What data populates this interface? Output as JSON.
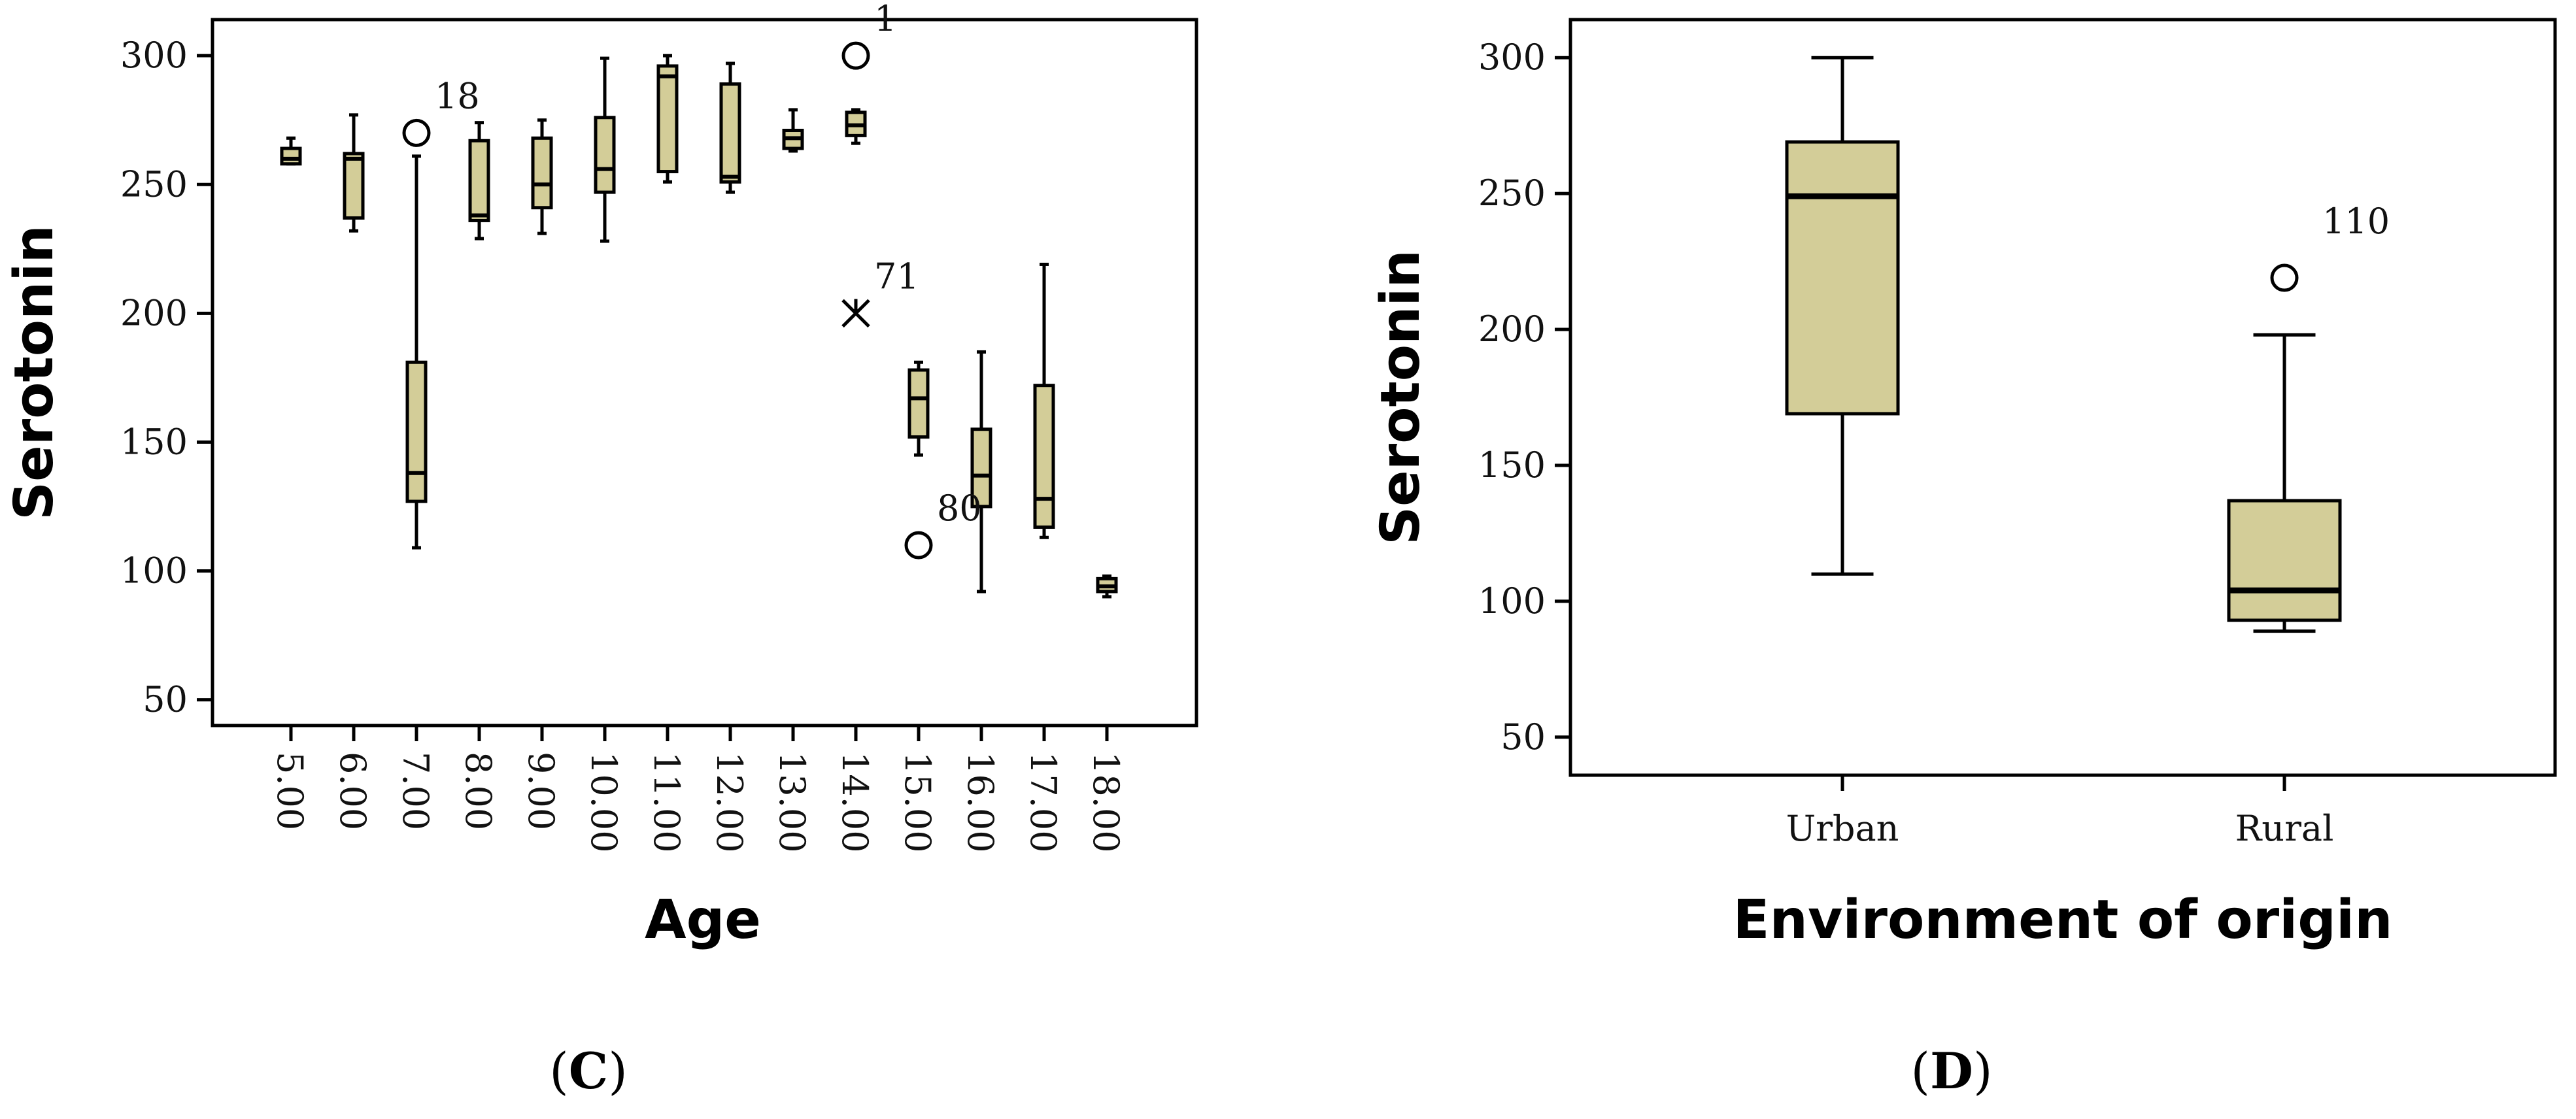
{
  "panels": [
    {
      "label_open": "(",
      "label_letter": "C",
      "label_close": ")"
    },
    {
      "label_open": "(",
      "label_letter": "D",
      "label_close": ")"
    }
  ],
  "chart_data": [
    {
      "type": "boxplot",
      "panel": "C",
      "xlabel": "Age",
      "ylabel": "Serotonin",
      "ylim": [
        40,
        314
      ],
      "yticks": [
        50,
        100,
        150,
        200,
        250,
        300
      ],
      "fill_color": "#d3cd98",
      "categories": [
        "5.00",
        "6.00",
        "7.00",
        "8.00",
        "9.00",
        "10.00",
        "11.00",
        "12.00",
        "13.00",
        "14.00",
        "15.00",
        "16.00",
        "17.00",
        "18.00"
      ],
      "boxes": [
        {
          "min": 258,
          "q1": 258,
          "median": 260,
          "q3": 264,
          "max": 268
        },
        {
          "min": 232,
          "q1": 237,
          "median": 260,
          "q3": 262,
          "max": 277
        },
        {
          "min": 109,
          "q1": 127,
          "median": 138,
          "q3": 181,
          "max": 261
        },
        {
          "min": 229,
          "q1": 236,
          "median": 238,
          "q3": 267,
          "max": 274
        },
        {
          "min": 231,
          "q1": 241,
          "median": 250,
          "q3": 268,
          "max": 275
        },
        {
          "min": 228,
          "q1": 247,
          "median": 256,
          "q3": 276,
          "max": 299
        },
        {
          "min": 251,
          "q1": 255,
          "median": 292,
          "q3": 296,
          "max": 300
        },
        {
          "min": 247,
          "q1": 251,
          "median": 253,
          "q3": 289,
          "max": 297
        },
        {
          "min": 263,
          "q1": 264,
          "median": 268,
          "q3": 271,
          "max": 279
        },
        {
          "min": 266,
          "q1": 269,
          "median": 273,
          "q3": 278,
          "max": 279
        },
        {
          "min": 145,
          "q1": 152,
          "median": 167,
          "q3": 178,
          "max": 181
        },
        {
          "min": 92,
          "q1": 125,
          "median": 137,
          "q3": 155,
          "max": 185
        },
        {
          "min": 113,
          "q1": 117,
          "median": 128,
          "q3": 172,
          "max": 219
        },
        {
          "min": 90,
          "q1": 92,
          "median": 94,
          "q3": 97,
          "max": 98
        }
      ],
      "outliers": [
        {
          "category": "7.00",
          "value": 270,
          "label": "18",
          "marker": "circle"
        },
        {
          "category": "14.00",
          "value": 300,
          "label": "1",
          "marker": "circle"
        },
        {
          "category": "14.00",
          "value": 200,
          "label": "71",
          "marker": "star"
        },
        {
          "category": "15.00",
          "value": 110,
          "label": "80",
          "marker": "circle"
        }
      ]
    },
    {
      "type": "boxplot",
      "panel": "D",
      "xlabel": "Environment of origin",
      "ylabel": "Serotonin",
      "ylim": [
        36,
        314
      ],
      "yticks": [
        50,
        100,
        150,
        200,
        250,
        300
      ],
      "fill_color": "#d3cd98",
      "categories": [
        "Urban",
        "Rural"
      ],
      "boxes": [
        {
          "min": 110,
          "q1": 169,
          "median": 249,
          "q3": 269,
          "max": 300
        },
        {
          "min": 89,
          "q1": 93,
          "median": 104,
          "q3": 137,
          "max": 198
        }
      ],
      "outliers": [
        {
          "category": "Rural",
          "value": 219,
          "label": "110",
          "marker": "circle"
        }
      ]
    }
  ]
}
